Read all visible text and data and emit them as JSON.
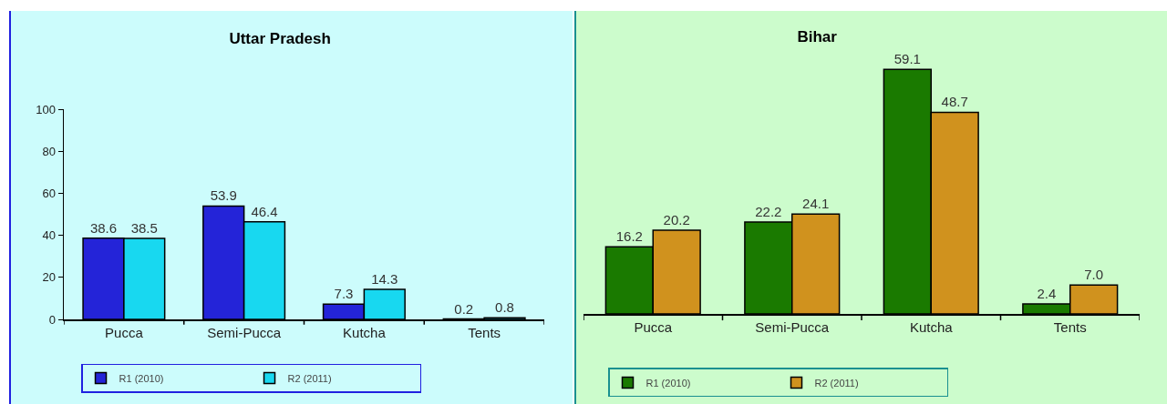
{
  "chart_data": [
    {
      "type": "bar",
      "title": "Uttar Pradesh",
      "categories": [
        "Pucca",
        "Semi-Pucca",
        "Kutcha",
        "Tents"
      ],
      "series": [
        {
          "name": "R1 (2010)",
          "color": "#2424d8",
          "values": [
            38.6,
            53.9,
            7.3,
            0.2
          ]
        },
        {
          "name": "R2 (2011)",
          "color": "#18d8f0",
          "values": [
            38.5,
            46.4,
            14.3,
            0.8
          ]
        }
      ],
      "ylim": [
        0,
        100
      ],
      "yticks": [
        0,
        20,
        40,
        60,
        80,
        100
      ],
      "data_labels": true,
      "legend": "bottom"
    },
    {
      "type": "bar",
      "title": "Bihar",
      "categories": [
        "Pucca",
        "Semi-Pucca",
        "Kutcha",
        "Tents"
      ],
      "series": [
        {
          "name": "R1 (2010)",
          "color": "#1a7a00",
          "values": [
            16.2,
            22.2,
            59.1,
            2.4
          ],
          "value_labels": [
            "16.2",
            "22.2",
            "59.1",
            "2.4"
          ]
        },
        {
          "name": "R2 (2011)",
          "color": "#d0921e",
          "values": [
            20.2,
            24.1,
            48.7,
            7.0
          ],
          "value_labels": [
            "20.2",
            "24.1",
            "48.7",
            "7.0"
          ]
        }
      ],
      "tick_labels": "x",
      "legend": "bottom"
    }
  ]
}
